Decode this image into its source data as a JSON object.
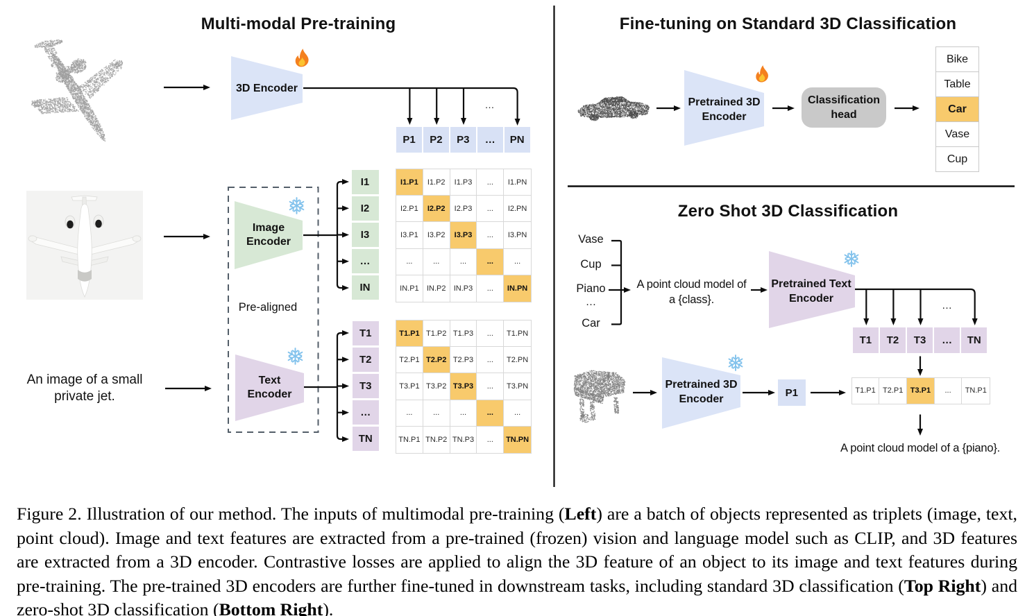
{
  "colors": {
    "blue": "#dbe4f7",
    "blue-cell": "#d8e1f5",
    "green": "#d7e8d5",
    "purple": "#e1d5e8",
    "orange": "#f8ca6c",
    "gray-head": "#c9c9c9",
    "ink": "#111111",
    "cell-border": "#d8d8d8",
    "table-border": "#c9c9c9",
    "dash": "#535e69"
  },
  "icons": {
    "trainable": "flame",
    "frozen": "snowflake"
  },
  "pretraining": {
    "title": "Multi-modal Pre-training",
    "encoder_3d_label": "3D Encoder",
    "image_encoder_label": "Image\nEncoder",
    "text_encoder_label": "Text\nEncoder",
    "pre_aligned": "Pre-aligned",
    "image_caption": "An image of a small\nprivate jet.",
    "dots": "…",
    "p_row": [
      "P1",
      "P2",
      "P3",
      "…",
      "PN"
    ],
    "i_col": [
      "I1",
      "I2",
      "I3",
      "…",
      "IN"
    ],
    "t_col": [
      "T1",
      "T2",
      "T3",
      "…",
      "TN"
    ],
    "i_matrix": [
      [
        "I1.P1",
        "I1.P2",
        "I1.P3",
        "...",
        "I1.PN"
      ],
      [
        "I2.P1",
        "I2.P2",
        "I2.P3",
        "...",
        "I2.PN"
      ],
      [
        "I3.P1",
        "I3.P2",
        "I3.P3",
        "...",
        "I3.PN"
      ],
      [
        "...",
        "...",
        "...",
        "...",
        "..."
      ],
      [
        "IN.P1",
        "IN.P2",
        "IN.P3",
        "...",
        "IN.PN"
      ]
    ],
    "t_matrix": [
      [
        "T1.P1",
        "T1.P2",
        "T1.P3",
        "...",
        "T1.PN"
      ],
      [
        "T2.P1",
        "T2.P2",
        "T2.P3",
        "...",
        "T2.PN"
      ],
      [
        "T3.P1",
        "T3.P2",
        "T3.P3",
        "...",
        "T3.PN"
      ],
      [
        "...",
        "...",
        "...",
        "...",
        "..."
      ],
      [
        "TN.P1",
        "TN.P2",
        "TN.P3",
        "...",
        "TN.PN"
      ]
    ]
  },
  "finetune": {
    "title": "Fine-tuning on Standard 3D Classification",
    "encoder_label": "Pretrained 3D\nEncoder",
    "head_label": "Classification\nhead",
    "classes": [
      "Bike",
      "Table",
      "Car",
      "Vase",
      "Cup"
    ],
    "predicted_class": "Car"
  },
  "zeroshot": {
    "title": "Zero Shot 3D Classification",
    "class_list": [
      "Vase",
      "Cup",
      "Piano",
      "…",
      "Car"
    ],
    "prompt": "A point cloud model of\na {class}.",
    "text_encoder_label": "Pretrained Text\nEncoder",
    "encoder_label": "Pretrained 3D\nEncoder",
    "p1": "P1",
    "dots": "…",
    "t_row": [
      "T1",
      "T2",
      "T3",
      "…",
      "TN"
    ],
    "result_row": [
      "T1.P1",
      "T2.P1",
      "T3.P1",
      "...",
      "TN.P1"
    ],
    "predicted": "T3.P1",
    "output_text": "A point cloud model of a {piano}."
  },
  "caption": {
    "label": "Figure 2.",
    "lines": [
      [
        {
          "t": "Figure 2. Illustration of our method. The inputs of multimodal pre-training ("
        },
        {
          "t": "Left",
          "b": 1
        },
        {
          "t": ") are a batch of objects represented as triplets (image, text,"
        }
      ],
      [
        {
          "t": "point cloud). Image and text features are extracted from a pre-trained (frozen) vision and language model such as CLIP, and 3D features"
        }
      ],
      [
        {
          "t": "are extracted from a 3D encoder. Contrastive losses are applied to align the 3D feature of an object to its image and text features during"
        }
      ],
      [
        {
          "t": "pre-training. The pre-trained 3D encoders are further fine-tuned in downstream tasks, including standard 3D classification ("
        },
        {
          "t": "Top Right",
          "b": 1
        },
        {
          "t": ") and"
        }
      ],
      [
        {
          "t": "zero-shot 3D classification ("
        },
        {
          "t": "Bottom Right",
          "b": 1
        },
        {
          "t": ")."
        }
      ]
    ]
  }
}
